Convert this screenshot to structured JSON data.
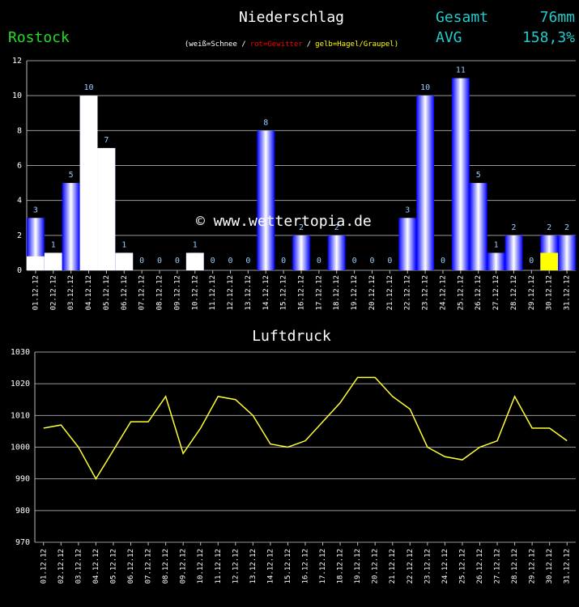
{
  "station": "Rostock",
  "summary": [
    {
      "label": "Gesamt",
      "value": "76mm"
    },
    {
      "label": "AVG",
      "value": "158,3%"
    }
  ],
  "watermark": "© www.wettertopia.de",
  "chart_data": [
    {
      "type": "bar",
      "title": "Niederschlag",
      "note": [
        {
          "text": "(weiß=Schnee /",
          "color": "#ffffff"
        },
        {
          "text": "rot=Gewitter",
          "color": "#ff0000"
        },
        {
          "text": "/",
          "color": "#ffffff"
        },
        {
          "text": "gelb=Hagel/Graupel)",
          "color": "#ffff00"
        }
      ],
      "categories": [
        "01.12.12",
        "02.12.12",
        "03.12.12",
        "04.12.12",
        "05.12.12",
        "06.12.12",
        "07.12.12",
        "08.12.12",
        "09.12.12",
        "10.12.12",
        "11.12.12",
        "12.12.12",
        "13.12.12",
        "14.12.12",
        "15.12.12",
        "16.12.12",
        "17.12.12",
        "18.12.12",
        "19.12.12",
        "20.12.12",
        "21.12.12",
        "22.12.12",
        "23.12.12",
        "24.12.12",
        "25.12.12",
        "26.12.12",
        "27.12.12",
        "28.12.12",
        "29.12.12",
        "30.12.12",
        "31.12.12"
      ],
      "values": [
        3,
        1,
        5,
        10,
        7,
        1,
        0,
        0,
        0,
        1,
        0,
        0,
        0,
        8,
        0,
        2,
        0,
        2,
        0,
        0,
        0,
        3,
        10,
        0,
        11,
        5,
        1,
        2,
        0,
        2,
        2
      ],
      "color": "#0000ff",
      "segments": [
        {
          "color": "#ffffff",
          "values": [
            0.8,
            1,
            0,
            10,
            7,
            1,
            0,
            0,
            0,
            1,
            0,
            0,
            0,
            0,
            0,
            0,
            0,
            0,
            0,
            0,
            0,
            0,
            0,
            0,
            0,
            0,
            0,
            0,
            0,
            0,
            0
          ]
        },
        {
          "color": "#ffff00",
          "values": [
            0,
            0,
            0,
            0,
            0,
            0,
            0,
            0,
            0,
            0,
            0,
            0,
            0,
            0,
            0,
            0,
            0,
            0,
            0,
            0,
            0,
            0,
            0,
            0,
            0,
            0,
            0,
            0,
            0,
            1,
            0
          ]
        }
      ],
      "ylim": [
        0,
        12
      ],
      "yticks": [
        0,
        2,
        4,
        6,
        8,
        10,
        12
      ],
      "grid": true
    },
    {
      "type": "line",
      "title": "Luftdruck",
      "categories": [
        "01.12.12",
        "02.12.12",
        "03.12.12",
        "04.12.12",
        "05.12.12",
        "06.12.12",
        "07.12.12",
        "08.12.12",
        "09.12.12",
        "10.12.12",
        "11.12.12",
        "12.12.12",
        "13.12.12",
        "14.12.12",
        "15.12.12",
        "16.12.12",
        "17.12.12",
        "18.12.12",
        "19.12.12",
        "20.12.12",
        "21.12.12",
        "22.12.12",
        "23.12.12",
        "24.12.12",
        "25.12.12",
        "26.12.12",
        "27.12.12",
        "28.12.12",
        "29.12.12",
        "30.12.12",
        "31.12.12"
      ],
      "values": [
        1006,
        1007,
        1000,
        990,
        999,
        1008,
        1008,
        1016,
        998,
        1006,
        1016,
        1015,
        1010,
        1001,
        1000,
        1002,
        1008,
        1014,
        1022,
        1022,
        1016,
        1012,
        1000,
        997,
        996,
        1000,
        1002,
        1016,
        1006,
        1006,
        1002
      ],
      "color": "#ffff33",
      "ylim": [
        970,
        1030
      ],
      "yticks": [
        970,
        980,
        990,
        1000,
        1010,
        1020,
        1030
      ],
      "grid": true
    }
  ]
}
